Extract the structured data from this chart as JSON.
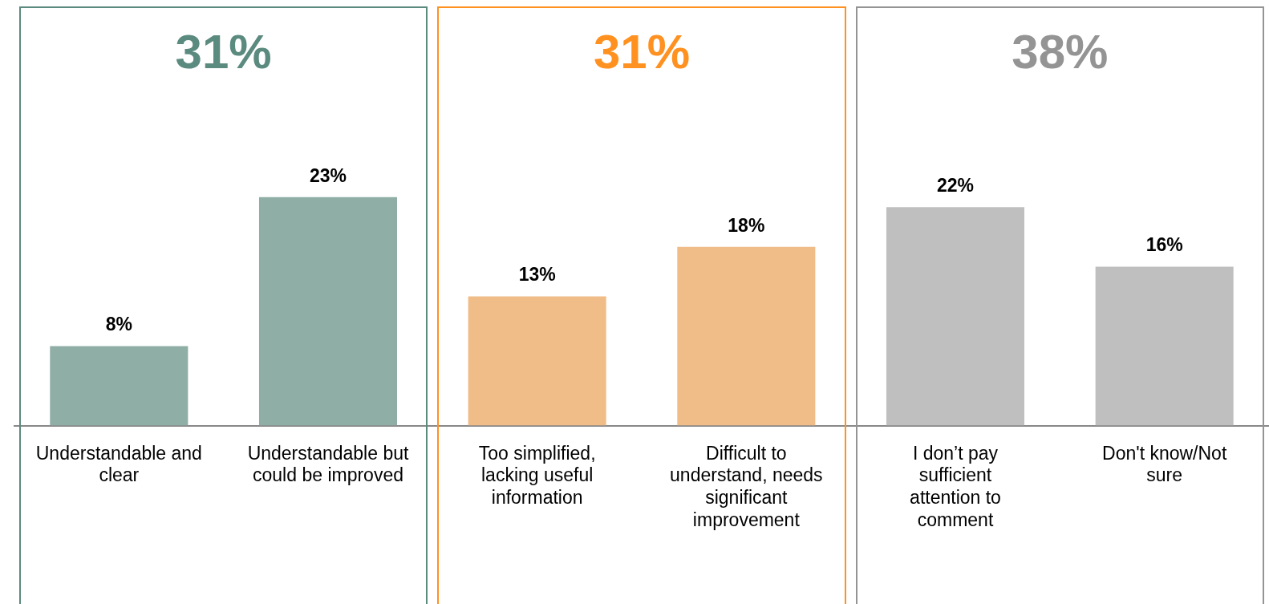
{
  "chart_data": {
    "type": "bar",
    "categories": [
      "Understandable and clear",
      "Understandable but could be improved",
      "Too simplified, lacking useful information",
      "Difficult to understand, needs significant improvement",
      "I don’t pay sufficient attention to comment",
      "Don't know/Not sure"
    ],
    "values": [
      8,
      23,
      13,
      18,
      22,
      16
    ],
    "colors": [
      "#8faea6",
      "#8faea6",
      "#f0bc87",
      "#f0bc87",
      "#bfbfbf",
      "#bfbfbf"
    ],
    "value_labels": [
      "8%",
      "23%",
      "13%",
      "18%",
      "22%",
      "16%"
    ],
    "annotations": [
      "31%",
      "31%",
      "38%"
    ]
  }
}
